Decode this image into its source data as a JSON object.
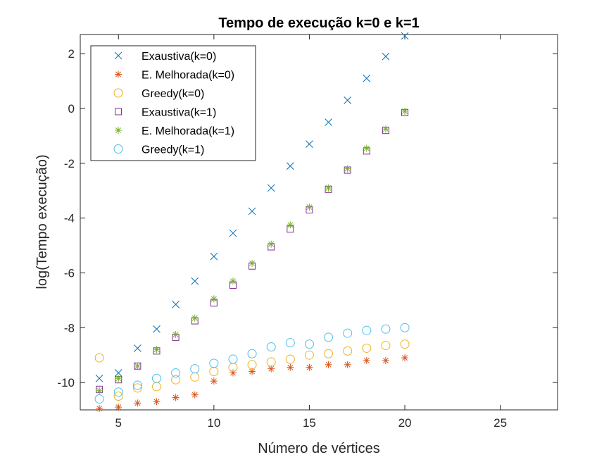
{
  "chart_data": {
    "type": "scatter",
    "title": "Tempo de execução k=0 e k=1",
    "xlabel": "Número de vértices",
    "ylabel": "log(Tempo execução)",
    "xlim": [
      3,
      28
    ],
    "ylim": [
      -11,
      2.7
    ],
    "xticks": [
      5,
      10,
      15,
      20,
      25
    ],
    "yticks": [
      2,
      0,
      -2,
      -4,
      -6,
      -8,
      -10
    ],
    "grid": false,
    "legend_position": "top-left",
    "series": [
      {
        "name": "Exaustiva(k=0)",
        "marker": "x",
        "color": "#0072BD",
        "x": [
          4,
          5,
          6,
          7,
          8,
          9,
          10,
          11,
          12,
          13,
          14,
          15,
          16,
          17,
          18,
          19,
          20
        ],
        "y": [
          -9.85,
          -9.65,
          -8.75,
          -8.05,
          -7.15,
          -6.3,
          -5.4,
          -4.55,
          -3.75,
          -2.9,
          -2.1,
          -1.3,
          -0.5,
          0.3,
          1.1,
          1.9,
          2.65
        ]
      },
      {
        "name": "E. Melhorada(k=0)",
        "marker": "asterisk",
        "color": "#D95319",
        "x": [
          4,
          5,
          6,
          7,
          8,
          9,
          10,
          11,
          12,
          13,
          14,
          15,
          16,
          17,
          18,
          19,
          20
        ],
        "y": [
          -10.95,
          -10.9,
          -10.75,
          -10.7,
          -10.55,
          -10.45,
          -9.95,
          -9.65,
          -9.6,
          -9.5,
          -9.45,
          -9.45,
          -9.35,
          -9.35,
          -9.2,
          -9.2,
          -9.1
        ]
      },
      {
        "name": "Greedy(k=0)",
        "marker": "circle",
        "color": "#EDB120",
        "x": [
          4,
          5,
          6,
          7,
          8,
          9,
          10,
          11,
          12,
          13,
          14,
          15,
          16,
          17,
          18,
          19,
          20
        ],
        "y": [
          -9.1,
          -10.5,
          -10.2,
          -10.15,
          -9.9,
          -9.8,
          -9.6,
          -9.45,
          -9.35,
          -9.25,
          -9.15,
          -9.0,
          -8.95,
          -8.85,
          -8.75,
          -8.65,
          -8.6
        ]
      },
      {
        "name": "Exaustiva(k=1)",
        "marker": "square",
        "color": "#7E2F8E",
        "x": [
          4,
          5,
          6,
          7,
          8,
          9,
          10,
          11,
          12,
          13,
          14,
          15,
          16,
          17,
          18,
          19,
          20
        ],
        "y": [
          -10.25,
          -9.9,
          -9.4,
          -8.85,
          -8.35,
          -7.75,
          -7.1,
          -6.45,
          -5.75,
          -5.05,
          -4.4,
          -3.7,
          -2.95,
          -2.25,
          -1.55,
          -0.8,
          -0.15
        ]
      },
      {
        "name": "E. Melhorada(k=1)",
        "marker": "asterisk",
        "color": "#77AC30",
        "x": [
          4,
          5,
          6,
          7,
          8,
          9,
          10,
          11,
          12,
          13,
          14,
          15,
          16,
          17,
          18,
          19,
          20
        ],
        "y": [
          -10.3,
          -9.85,
          -9.4,
          -8.8,
          -8.25,
          -7.65,
          -6.95,
          -6.3,
          -5.65,
          -4.95,
          -4.25,
          -3.6,
          -2.9,
          -2.2,
          -1.45,
          -0.75,
          -0.1
        ]
      },
      {
        "name": "Greedy(k=1)",
        "marker": "circle",
        "color": "#4DBEEE",
        "x": [
          4,
          5,
          6,
          7,
          8,
          9,
          10,
          11,
          12,
          13,
          14,
          15,
          16,
          17,
          18,
          19,
          20
        ],
        "y": [
          -10.6,
          -10.35,
          -10.1,
          -9.85,
          -9.65,
          -9.5,
          -9.3,
          -9.15,
          -8.95,
          -8.7,
          -8.55,
          -8.6,
          -8.35,
          -8.2,
          -8.1,
          -8.05,
          -8.0
        ]
      }
    ]
  }
}
